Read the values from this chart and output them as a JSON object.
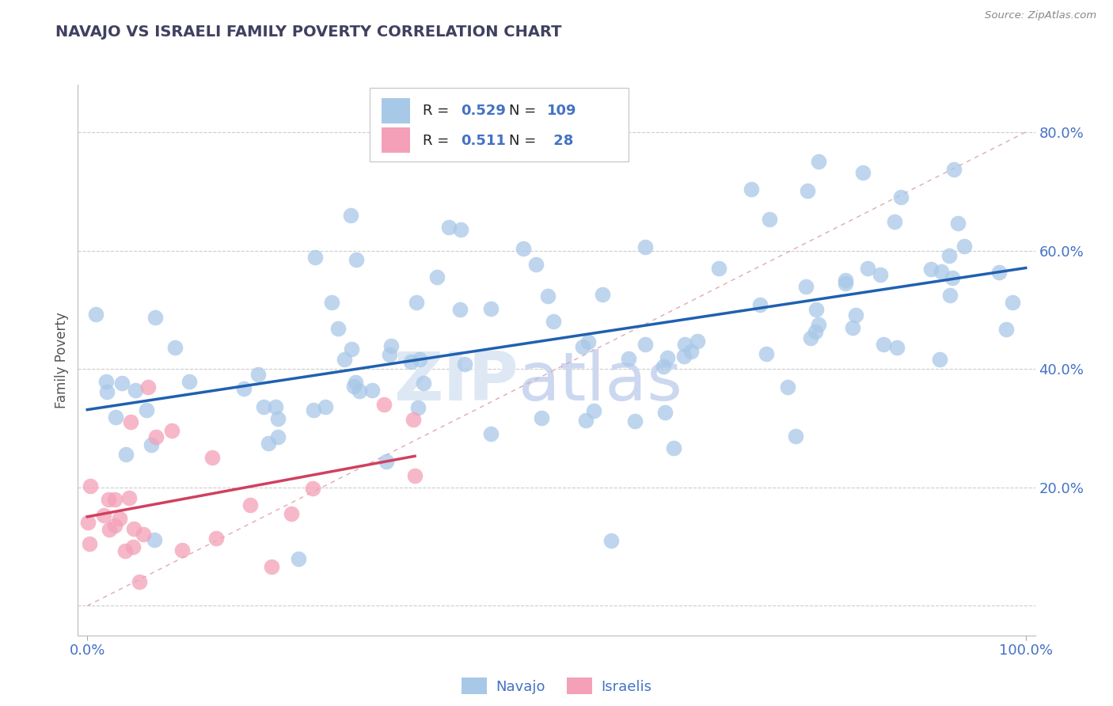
{
  "title": "NAVAJO VS ISRAELI FAMILY POVERTY CORRELATION CHART",
  "source": "Source: ZipAtlas.com",
  "ylabel": "Family Poverty",
  "navajo_color": "#a8c8e8",
  "israeli_color": "#f4a0b8",
  "navajo_line_color": "#2060b0",
  "israeli_line_color": "#d04060",
  "navajo_R": 0.529,
  "navajo_N": 109,
  "israeli_R": 0.511,
  "israeli_N": 28,
  "axis_label_color": "#4472c4",
  "title_color": "#404060",
  "watermark_zip_color": "#d8e4f0",
  "watermark_atlas_color": "#c8d8ec",
  "legend_text_color": "#000000",
  "legend_value_color": "#4472c4",
  "grid_color": "#cccccc",
  "diag_line_color": "#e8b0b8"
}
